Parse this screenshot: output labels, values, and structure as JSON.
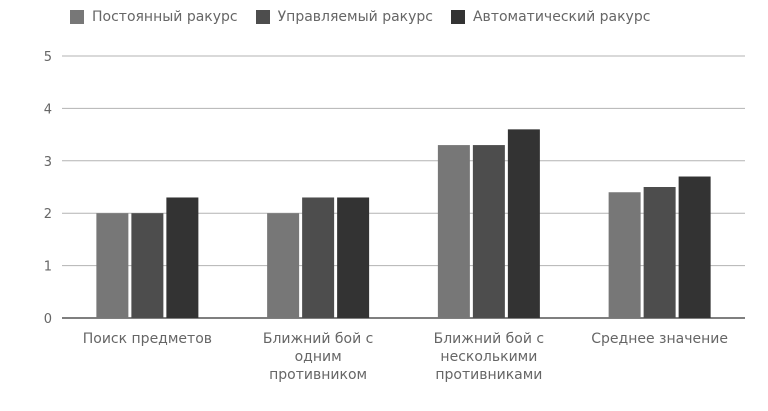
{
  "chart_data": {
    "type": "bar",
    "title": "",
    "xlabel": "",
    "ylabel": "",
    "ylim": [
      0,
      5
    ],
    "yticks": [
      "0",
      "1",
      "2",
      "3",
      "4",
      "5"
    ],
    "grid": true,
    "legend_position": "top-left",
    "categories": [
      [
        "Поиск предметов"
      ],
      [
        "Ближний бой с",
        "одним",
        "противником"
      ],
      [
        "Ближний бой с",
        "несколькими",
        "противниками"
      ],
      [
        "Среднее значение"
      ]
    ],
    "series": [
      {
        "name": "Постоянный ракурс",
        "color": "#777777",
        "values": [
          2.0,
          2.0,
          3.3,
          2.4
        ]
      },
      {
        "name": "Управляемый ракурс",
        "color": "#4d4d4d",
        "values": [
          2.0,
          2.3,
          3.3,
          2.5
        ]
      },
      {
        "name": "Автоматический ракурс",
        "color": "#333333",
        "values": [
          2.3,
          2.3,
          3.6,
          2.7
        ]
      }
    ]
  }
}
